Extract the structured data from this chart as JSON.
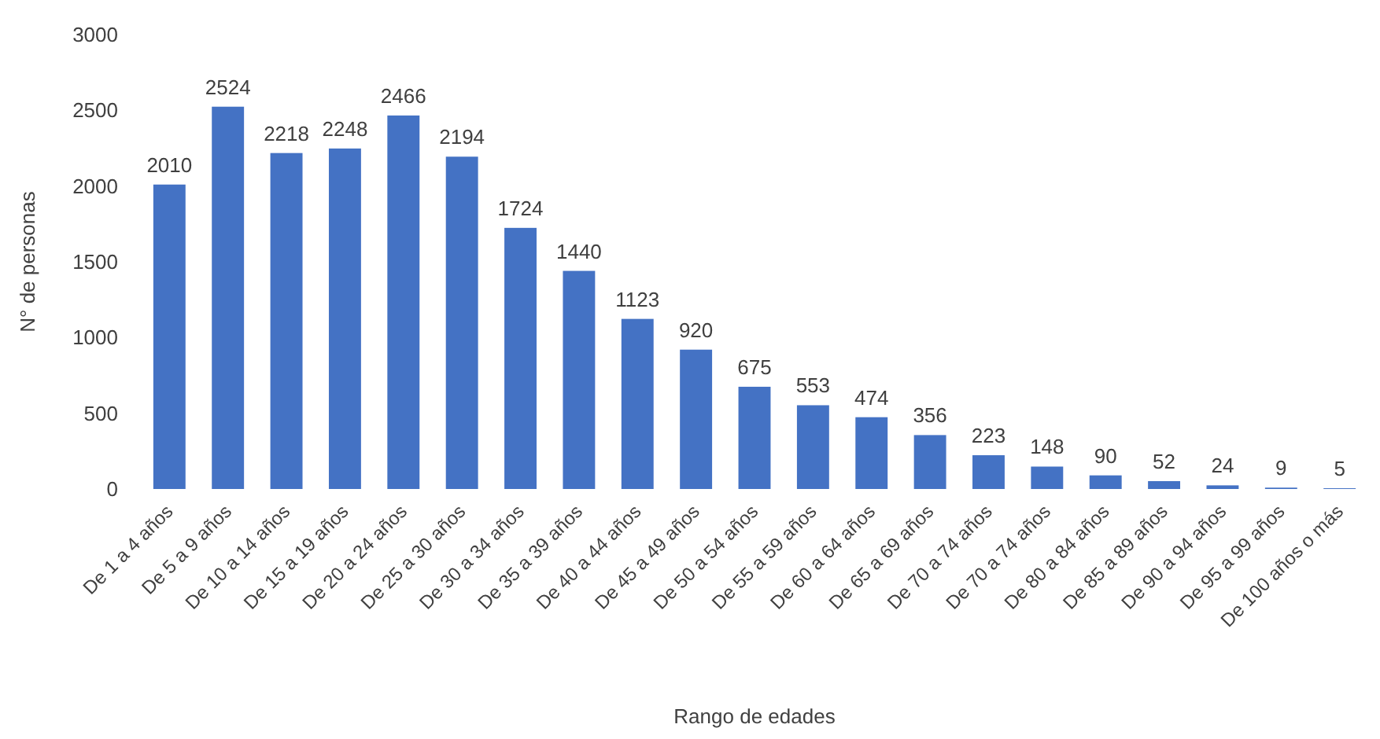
{
  "chart_data": {
    "type": "bar",
    "xlabel": "Rango de edades",
    "ylabel": "N° de personas",
    "categories": [
      "De 1 a 4 años",
      "De 5 a 9 años",
      "De 10 a 14 años",
      "De 15 a 19 años",
      "De 20 a 24 años",
      "De 25 a 30 años",
      "De 30 a 34 años",
      "De 35 a 39 años",
      "De 40 a 44 años",
      "De 45 a 49 años",
      "De 50 a 54 años",
      "De 55 a 59 años",
      "De 60 a 64 años",
      "De 65 a 69 años",
      "De 70 a 74 años",
      "De 70 a 74 años",
      "De 80 a 84 años",
      "De 85 a 89 años",
      "De 90 a 94 años",
      "De 95 a 99 años",
      "De 100 años o más"
    ],
    "values": [
      2010,
      2524,
      2218,
      2248,
      2466,
      2194,
      1724,
      1440,
      1123,
      920,
      675,
      553,
      474,
      356,
      223,
      148,
      90,
      52,
      24,
      9,
      5
    ],
    "color": "#4472c4",
    "ylim": [
      0,
      3000
    ],
    "yticks": [
      0,
      500,
      1000,
      1500,
      2000,
      2500,
      3000
    ],
    "data_labels": true,
    "grid": false
  }
}
